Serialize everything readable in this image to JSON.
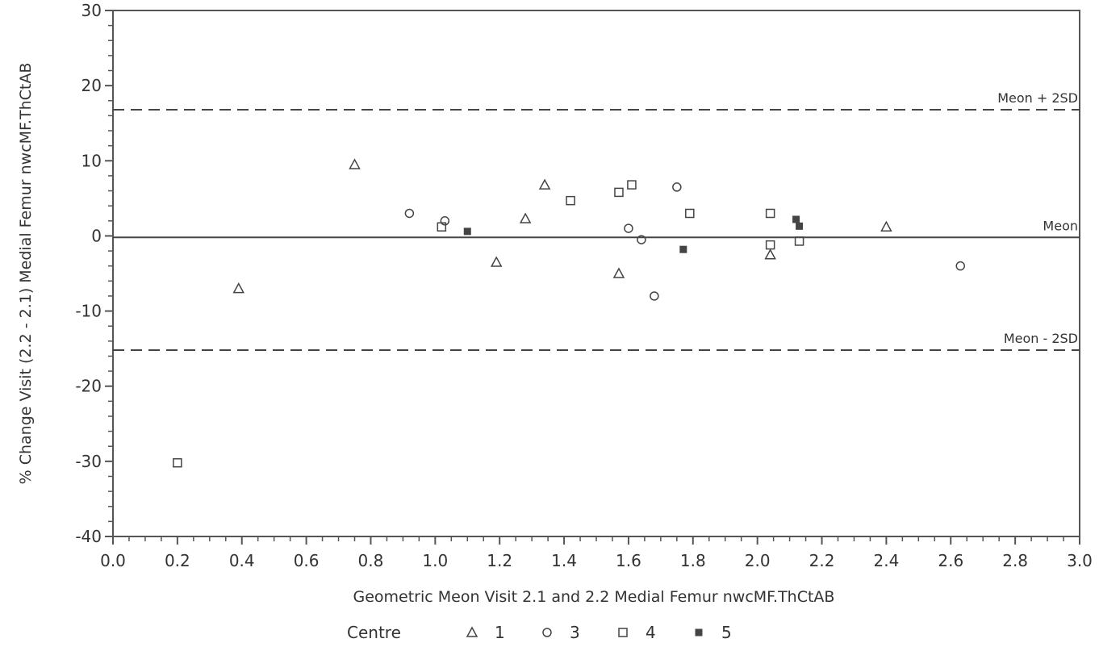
{
  "chart_data": {
    "type": "scatter",
    "title": "",
    "xlabel": "Geometric Meon Visit 2.1 and 2.2 Medial Femur nwcMF.ThCtAB",
    "ylabel": "% Change Visit (2.2 - 2.1) Medial Femur nwcMF.ThCtAB",
    "xlim": [
      0.0,
      3.0
    ],
    "ylim": [
      -40,
      30
    ],
    "x_ticks": [
      "0.0",
      "0.2",
      "0.4",
      "0.6",
      "0.8",
      "1.0",
      "1.2",
      "1.4",
      "1.6",
      "1.8",
      "2.0",
      "2.2",
      "2.4",
      "2.6",
      "2.8",
      "3.0"
    ],
    "y_ticks": [
      "30",
      "20",
      "10",
      "0",
      "-10",
      "-20",
      "-30",
      "-40"
    ],
    "reference_lines": [
      {
        "label": "Meon + 2SD",
        "y": 16.8,
        "style": "dashed"
      },
      {
        "label": "Meon",
        "y": -0.2,
        "style": "solid"
      },
      {
        "label": "Meon - 2SD",
        "y": -15.2,
        "style": "dashed"
      }
    ],
    "legend": {
      "title": "Centre",
      "position": "bottom",
      "entries": [
        {
          "label": "1",
          "marker": "triangle"
        },
        {
          "label": "3",
          "marker": "circle"
        },
        {
          "label": "4",
          "marker": "square"
        },
        {
          "label": "5",
          "marker": "filled-square"
        }
      ]
    },
    "series": [
      {
        "name": "1",
        "marker": "triangle",
        "x": [
          0.39,
          0.75,
          1.19,
          1.28,
          1.34,
          1.57,
          2.04,
          2.4
        ],
        "y": [
          -7.0,
          9.5,
          -3.5,
          2.3,
          6.8,
          -5.0,
          -2.5,
          1.2
        ]
      },
      {
        "name": "3",
        "marker": "circle",
        "x": [
          0.92,
          1.03,
          1.6,
          1.64,
          1.68,
          1.75,
          2.63
        ],
        "y": [
          3.0,
          2.0,
          1.0,
          -0.5,
          -8.0,
          6.5,
          -4.0
        ]
      },
      {
        "name": "4",
        "marker": "square",
        "x": [
          0.2,
          1.02,
          1.42,
          1.57,
          1.61,
          1.79,
          2.04,
          2.04,
          2.13
        ],
        "y": [
          -30.2,
          1.2,
          4.7,
          5.8,
          6.8,
          3.0,
          3.0,
          -1.2,
          -0.7
        ]
      },
      {
        "name": "5",
        "marker": "filled-square",
        "x": [
          1.1,
          1.77,
          2.12,
          2.13
        ],
        "y": [
          0.6,
          -1.8,
          2.2,
          1.3
        ]
      }
    ]
  }
}
